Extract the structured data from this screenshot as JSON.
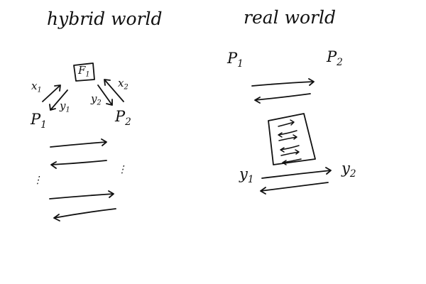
{
  "colors": {
    "ink": "#111111",
    "background": "#ffffff"
  },
  "hybrid_world": {
    "title": "hybrid world",
    "functionality": {
      "name": "F",
      "sub": "1"
    },
    "p1": {
      "name": "P",
      "sub": "1"
    },
    "p2": {
      "name": "P",
      "sub": "2"
    },
    "x1": {
      "name": "x",
      "sub": "1"
    },
    "y1": {
      "name": "y",
      "sub": "1"
    },
    "y2": {
      "name": "y",
      "sub": "2"
    },
    "x2": {
      "name": "x",
      "sub": "2"
    },
    "ellipsis": "⋮"
  },
  "real_world": {
    "title": "real world",
    "p1": {
      "name": "P",
      "sub": "1"
    },
    "p2": {
      "name": "P",
      "sub": "2"
    },
    "y1": {
      "name": "y",
      "sub": "1"
    },
    "y2": {
      "name": "y",
      "sub": "2"
    }
  }
}
